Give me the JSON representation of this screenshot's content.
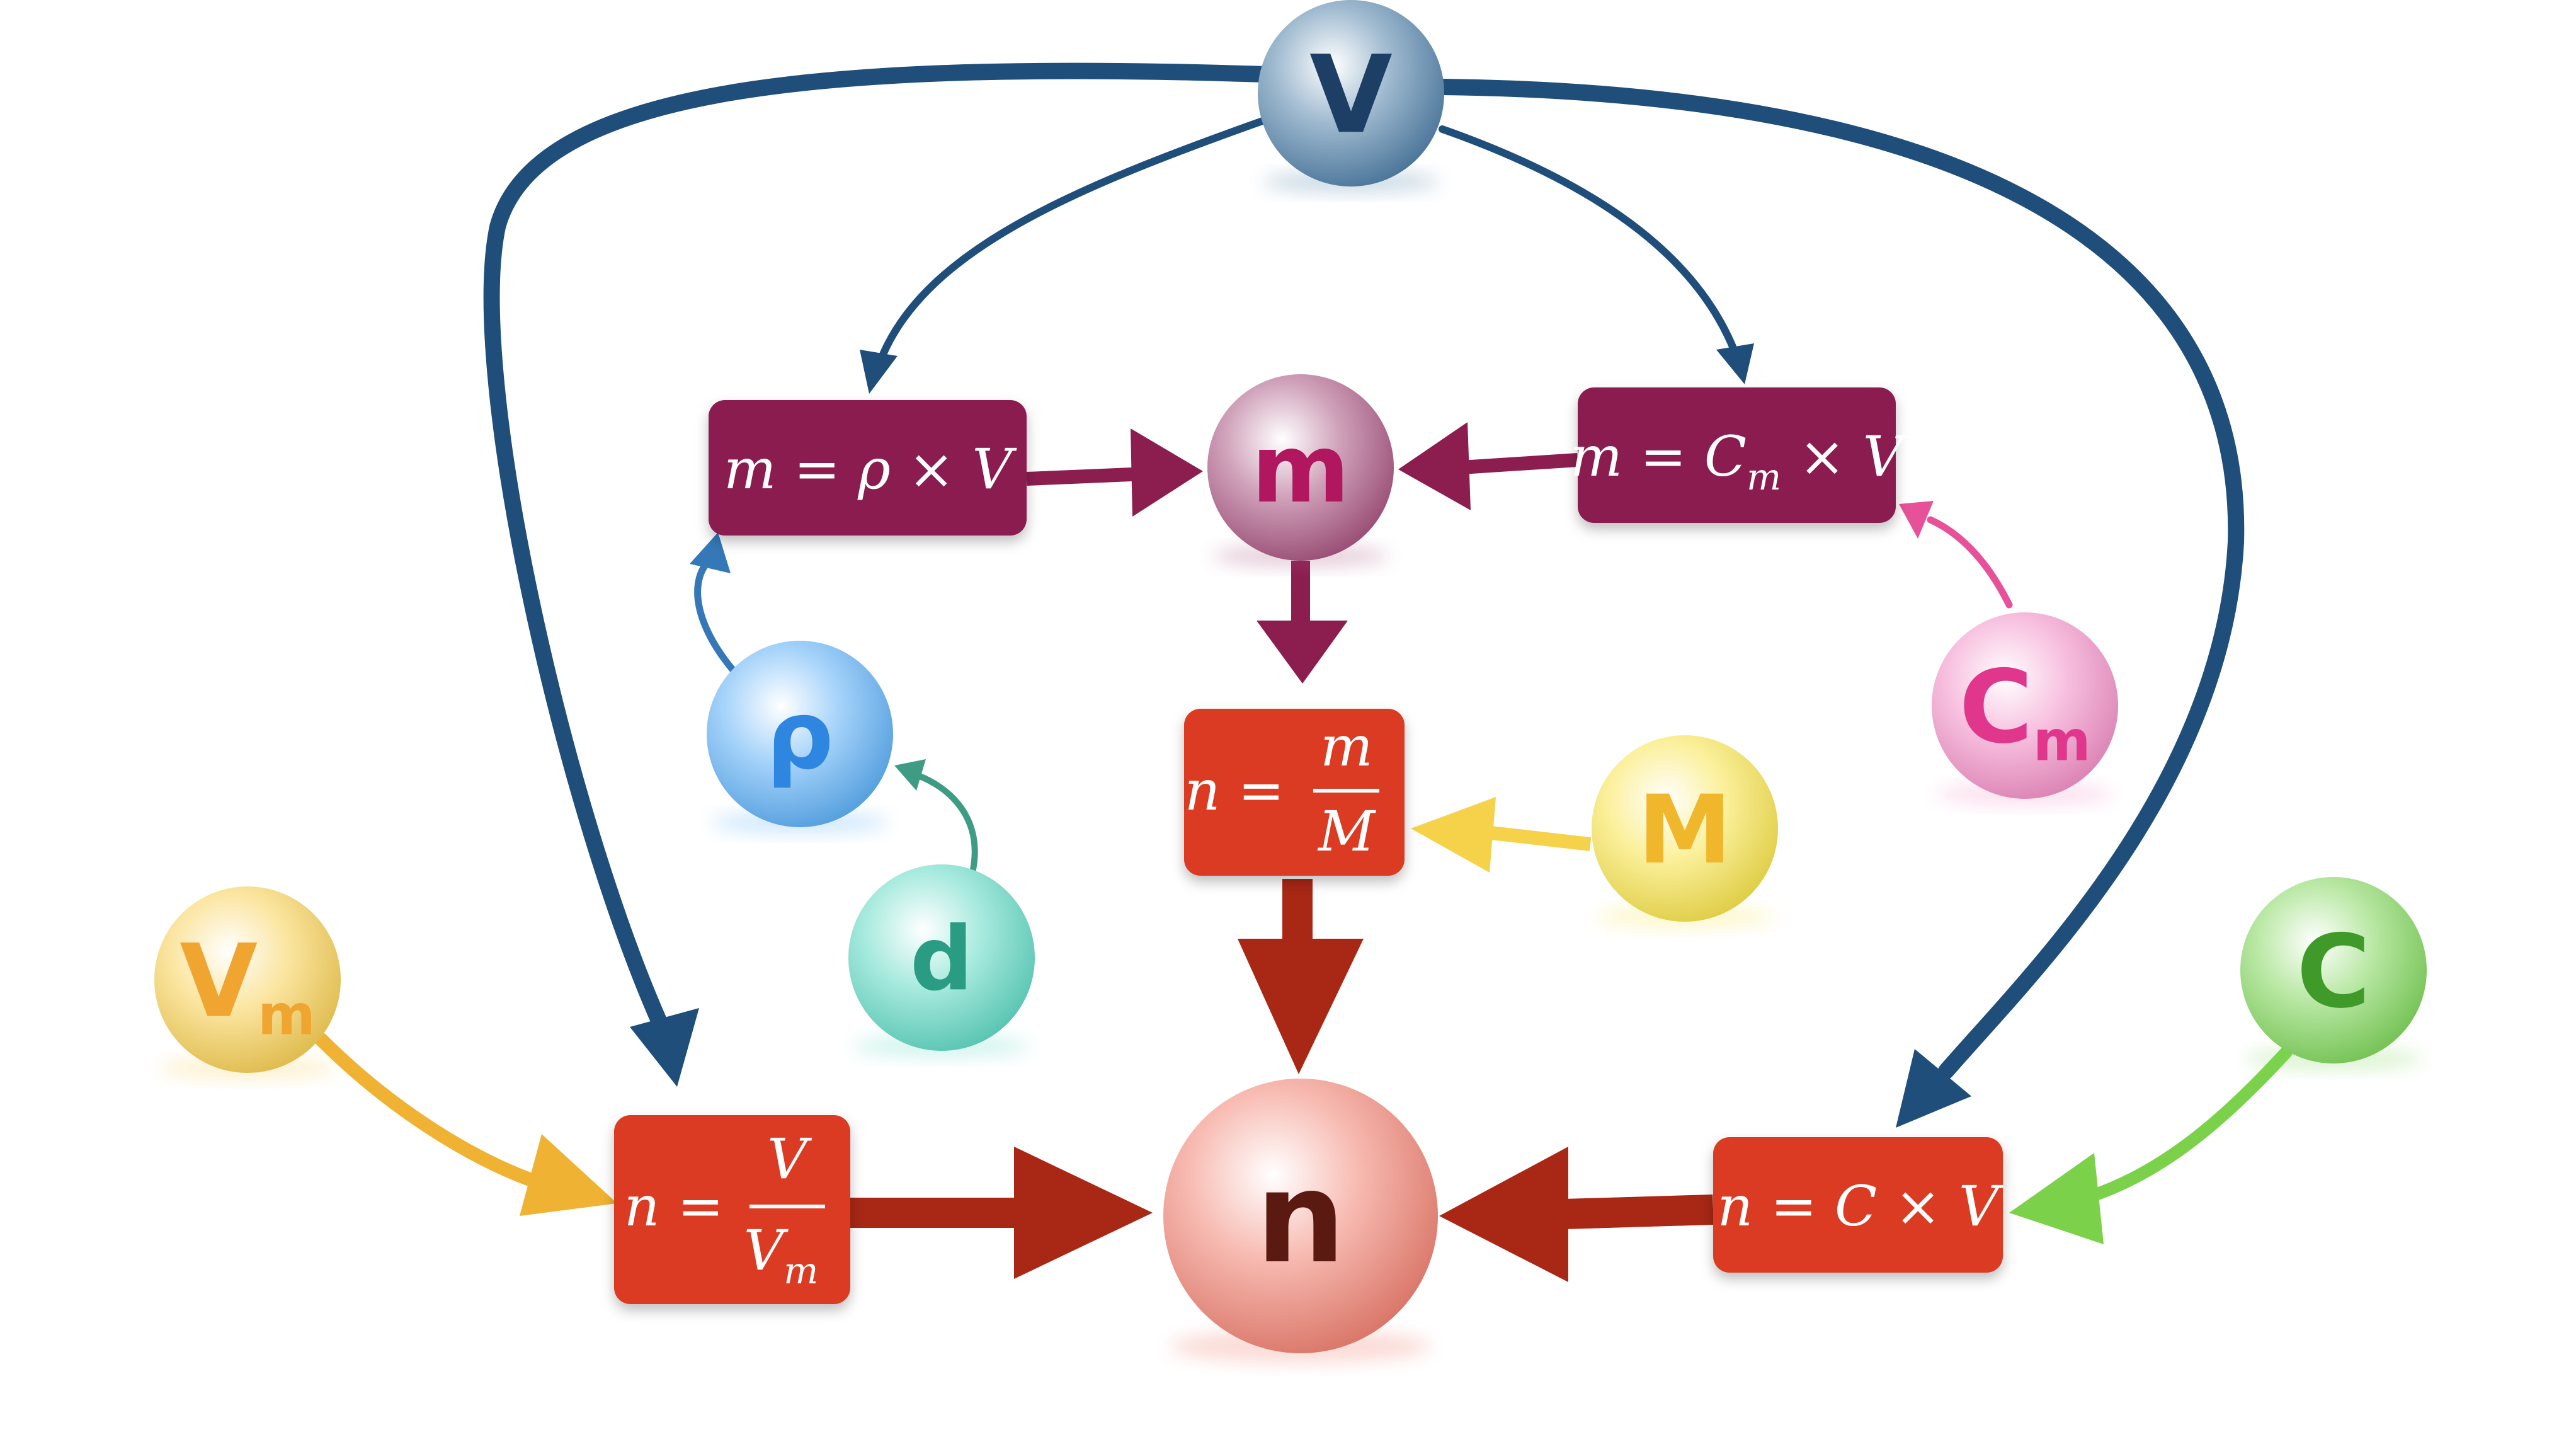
{
  "nodes": {
    "V": {
      "label": "V",
      "sub": "",
      "color": "#4f7fa8",
      "text_color": "#1d3f66"
    },
    "m": {
      "label": "m",
      "sub": "",
      "color": "#a8527f",
      "text_color": "#b0175e"
    },
    "rho": {
      "label": "ρ",
      "sub": "",
      "color": "#5aaef5",
      "text_color": "#2f86e0"
    },
    "d": {
      "label": "d",
      "sub": "",
      "color": "#5fd9c3",
      "text_color": "#2a9c84"
    },
    "M": {
      "label": "M",
      "sub": "",
      "color": "#f7e34a",
      "text_color": "#f0b72c"
    },
    "Cm": {
      "label": "C",
      "sub": "m",
      "color": "#f28fc6",
      "text_color": "#e0378c"
    },
    "Vm": {
      "label": "V",
      "sub": "m",
      "color": "#f7cf52",
      "text_color": "#f0a531"
    },
    "C": {
      "label": "C",
      "sub": "",
      "color": "#7fd65a",
      "text_color": "#3f9a2a"
    },
    "n": {
      "label": "n",
      "sub": "",
      "color": "#f08070",
      "text_color": "#5a1a12"
    }
  },
  "formulas": {
    "m_rho_V": {
      "lhs": "m",
      "eq": " = ",
      "a": "ρ",
      "op": " × ",
      "b": "V",
      "color": "#8b1d4f"
    },
    "m_Cm_V": {
      "lhs": "m",
      "eq": " = ",
      "a": "C",
      "a_sub": "m",
      "op": " × ",
      "b": "V",
      "color": "#8b1d4f"
    },
    "n_m_M": {
      "lhs": "n",
      "eq": " = ",
      "num": "m",
      "den": "M",
      "color": "#db3a24"
    },
    "n_V_Vm": {
      "lhs": "n",
      "eq": " = ",
      "num": "V",
      "den": "V",
      "den_sub": "m",
      "color": "#db3a24"
    },
    "n_C_V": {
      "lhs": "n",
      "eq": " = ",
      "a": "C",
      "op": " × ",
      "b": "V",
      "color": "#db3a24"
    }
  },
  "arrow_colors": {
    "V": "#1f4e7a",
    "m": "#8b1d4f",
    "rho": "#3478b8",
    "d": "#3e9c85",
    "M": "#f5d24a",
    "Cm": "#e6519a",
    "Vm": "#f0b232",
    "C": "#7bd24a",
    "n": "#a82715"
  }
}
